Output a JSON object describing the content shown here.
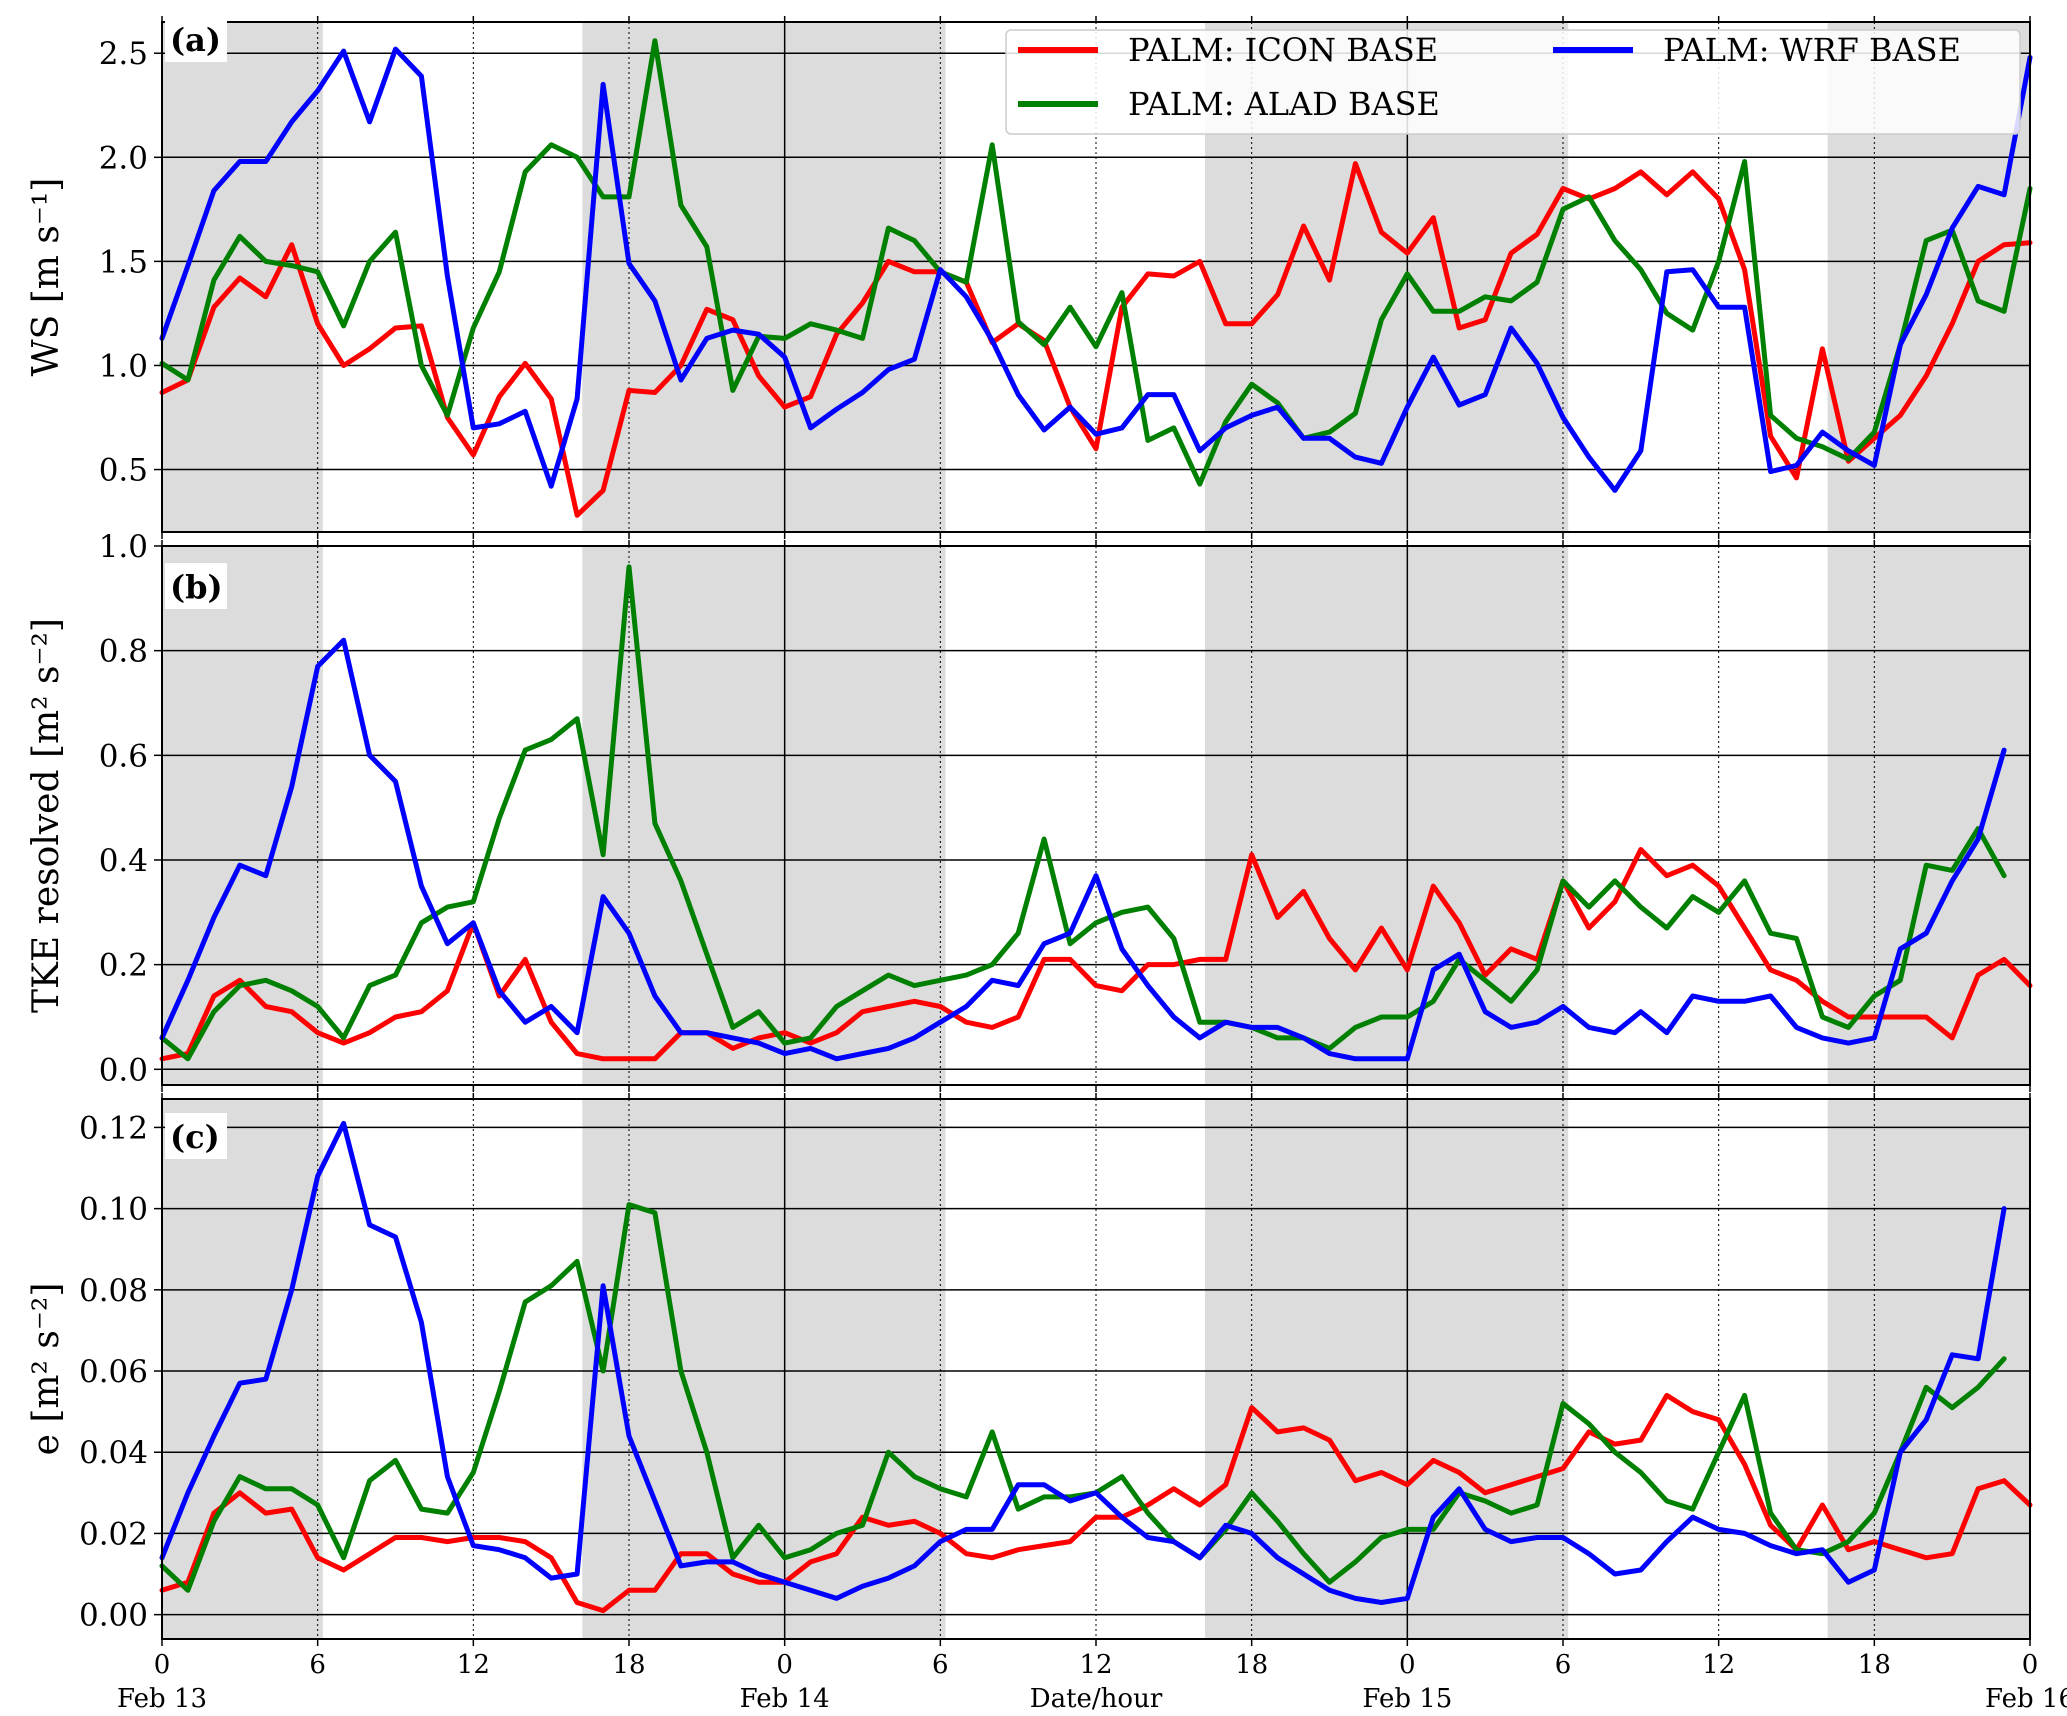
{
  "colors": {
    "icon": "#ff0000",
    "alad": "#008000",
    "wrf": "#0000ff",
    "night": "#dcdcdc"
  },
  "legend": [
    {
      "label": "PALM: ICON BASE",
      "color": "#ff0000"
    },
    {
      "label": "PALM: ALAD BASE",
      "color": "#008000"
    },
    {
      "label": "PALM: WRF BASE",
      "color": "#0000ff"
    }
  ],
  "x_axis": {
    "label": "Date/hour",
    "hour_ticks": [
      "0",
      "6",
      "12",
      "18",
      "0",
      "6",
      "12",
      "18",
      "0",
      "6",
      "12",
      "18",
      "0"
    ],
    "date_labels": [
      "Feb 13",
      "Feb 14",
      "Feb 15",
      "Feb 16"
    ]
  },
  "chart_data": [
    {
      "type": "line",
      "panel": "(a)",
      "ylabel": "WS [m s⁻¹]",
      "ylim": [
        0.2,
        2.65
      ],
      "yticks": [
        "0.5",
        "1.0",
        "1.5",
        "2.0",
        "2.5"
      ],
      "xlim_hours": [
        0,
        72
      ],
      "x_hours_step": 1,
      "x_hours_start": 0,
      "grid": true,
      "legend_position": "top-right",
      "night_shading_hours": [
        [
          0,
          6.2
        ],
        [
          16.2,
          30.2
        ],
        [
          40.2,
          54.2
        ],
        [
          64.2,
          72
        ]
      ],
      "series": [
        {
          "name": "PALM: ICON BASE",
          "color": "#ff0000",
          "values": [
            0.87,
            0.93,
            1.28,
            1.42,
            1.33,
            1.58,
            1.2,
            1.0,
            1.08,
            1.18,
            1.19,
            0.75,
            0.57,
            0.85,
            1.01,
            0.84,
            0.28,
            0.4,
            0.88,
            0.87,
            1.0,
            1.27,
            1.22,
            0.95,
            0.8,
            0.85,
            1.15,
            1.3,
            1.5,
            1.45,
            1.45,
            1.4,
            1.11,
            1.2,
            1.12,
            0.8,
            0.6,
            1.28,
            1.44,
            1.43,
            1.5,
            1.2,
            1.2,
            1.34,
            1.67,
            1.41,
            1.97,
            1.64,
            1.54,
            1.71,
            1.18,
            1.22,
            1.54,
            1.63,
            1.85,
            1.8,
            1.85,
            1.93,
            1.82,
            1.93,
            1.8,
            1.46,
            0.66,
            0.46,
            1.08,
            0.54,
            0.65,
            0.76,
            0.95,
            1.2,
            1.5,
            1.58,
            1.59
          ]
        },
        {
          "name": "PALM: ALAD BASE",
          "color": "#008000",
          "values": [
            1.01,
            0.93,
            1.41,
            1.62,
            1.5,
            1.48,
            1.45,
            1.19,
            1.5,
            1.64,
            1.0,
            0.76,
            1.18,
            1.45,
            1.93,
            2.06,
            2.0,
            1.81,
            1.81,
            2.56,
            1.77,
            1.57,
            0.88,
            1.14,
            1.13,
            1.2,
            1.17,
            1.13,
            1.66,
            1.6,
            1.45,
            1.4,
            2.06,
            1.21,
            1.1,
            1.28,
            1.09,
            1.35,
            0.64,
            0.7,
            0.43,
            0.73,
            0.91,
            0.82,
            0.65,
            0.68,
            0.77,
            1.22,
            1.44,
            1.26,
            1.26,
            1.33,
            1.31,
            1.4,
            1.75,
            1.81,
            1.6,
            1.46,
            1.25,
            1.17,
            1.5,
            1.98,
            0.76,
            0.65,
            0.61,
            0.55,
            0.68,
            1.1,
            1.6,
            1.65,
            1.31,
            1.26,
            1.85
          ]
        },
        {
          "name": "PALM: WRF BASE",
          "color": "#0000ff",
          "values": [
            1.13,
            1.48,
            1.84,
            1.98,
            1.98,
            2.17,
            2.32,
            2.51,
            2.17,
            2.52,
            2.39,
            1.43,
            0.7,
            0.72,
            0.78,
            0.42,
            0.84,
            2.35,
            1.49,
            1.31,
            0.93,
            1.13,
            1.17,
            1.15,
            1.04,
            0.7,
            0.79,
            0.87,
            0.98,
            1.03,
            1.46,
            1.33,
            1.12,
            0.86,
            0.69,
            0.8,
            0.67,
            0.7,
            0.86,
            0.86,
            0.59,
            0.7,
            0.76,
            0.8,
            0.65,
            0.65,
            0.56,
            0.53,
            0.8,
            1.04,
            0.81,
            0.86,
            1.18,
            1.01,
            0.75,
            0.56,
            0.4,
            0.59,
            1.45,
            1.46,
            1.28,
            1.28,
            0.49,
            0.52,
            0.68,
            0.59,
            0.52,
            1.1,
            1.34,
            1.66,
            1.86,
            1.82,
            2.48
          ]
        }
      ]
    },
    {
      "type": "line",
      "panel": "(b)",
      "ylabel": "TKE resolved [m² s⁻²]",
      "ylim": [
        -0.03,
        1.0
      ],
      "yticks": [
        "0.0",
        "0.2",
        "0.4",
        "0.6",
        "0.8",
        "1.0"
      ],
      "xlim_hours": [
        0,
        72
      ],
      "x_hours_step": 1,
      "x_hours_start": 0,
      "grid": true,
      "night_shading_hours": [
        [
          0,
          6.2
        ],
        [
          16.2,
          30.2
        ],
        [
          40.2,
          54.2
        ],
        [
          64.2,
          72
        ]
      ],
      "series": [
        {
          "name": "PALM: ICON BASE",
          "color": "#ff0000",
          "values": [
            0.02,
            0.03,
            0.14,
            0.17,
            0.12,
            0.11,
            0.07,
            0.05,
            0.07,
            0.1,
            0.11,
            0.15,
            0.28,
            0.14,
            0.21,
            0.09,
            0.03,
            0.02,
            0.02,
            0.02,
            0.07,
            0.07,
            0.04,
            0.06,
            0.07,
            0.05,
            0.07,
            0.11,
            0.12,
            0.13,
            0.12,
            0.09,
            0.08,
            0.1,
            0.21,
            0.21,
            0.16,
            0.15,
            0.2,
            0.2,
            0.21,
            0.21,
            0.41,
            0.29,
            0.34,
            0.25,
            0.19,
            0.27,
            0.19,
            0.35,
            0.28,
            0.18,
            0.23,
            0.21,
            0.36,
            0.27,
            0.32,
            0.42,
            0.37,
            0.39,
            0.35,
            0.27,
            0.19,
            0.17,
            0.13,
            0.1,
            0.1,
            0.1,
            0.1,
            0.06,
            0.18,
            0.21,
            0.16
          ]
        },
        {
          "name": "PALM: ALAD BASE",
          "color": "#008000",
          "values": [
            0.06,
            0.02,
            0.11,
            0.16,
            0.17,
            0.15,
            0.12,
            0.06,
            0.16,
            0.18,
            0.28,
            0.31,
            0.32,
            0.48,
            0.61,
            0.63,
            0.67,
            0.41,
            0.96,
            0.47,
            0.36,
            0.22,
            0.08,
            0.11,
            0.05,
            0.06,
            0.12,
            0.15,
            0.18,
            0.16,
            0.17,
            0.18,
            0.2,
            0.26,
            0.44,
            0.24,
            0.28,
            0.3,
            0.31,
            0.25,
            0.09,
            0.09,
            0.08,
            0.06,
            0.06,
            0.04,
            0.08,
            0.1,
            0.1,
            0.13,
            0.21,
            0.17,
            0.13,
            0.19,
            0.36,
            0.31,
            0.36,
            0.31,
            0.27,
            0.33,
            0.3,
            0.36,
            0.26,
            0.25,
            0.1,
            0.08,
            0.14,
            0.17,
            0.39,
            0.38,
            0.46,
            0.37
          ]
        },
        {
          "name": "PALM: WRF BASE",
          "color": "#0000ff",
          "values": [
            0.06,
            0.17,
            0.29,
            0.39,
            0.37,
            0.54,
            0.77,
            0.82,
            0.6,
            0.55,
            0.35,
            0.24,
            0.28,
            0.15,
            0.09,
            0.12,
            0.07,
            0.33,
            0.26,
            0.14,
            0.07,
            0.07,
            0.06,
            0.05,
            0.03,
            0.04,
            0.02,
            0.03,
            0.04,
            0.06,
            0.09,
            0.12,
            0.17,
            0.16,
            0.24,
            0.26,
            0.37,
            0.23,
            0.16,
            0.1,
            0.06,
            0.09,
            0.08,
            0.08,
            0.06,
            0.03,
            0.02,
            0.02,
            0.02,
            0.19,
            0.22,
            0.11,
            0.08,
            0.09,
            0.12,
            0.08,
            0.07,
            0.11,
            0.07,
            0.14,
            0.13,
            0.13,
            0.14,
            0.08,
            0.06,
            0.05,
            0.06,
            0.23,
            0.26,
            0.36,
            0.44,
            0.61
          ]
        }
      ]
    },
    {
      "type": "line",
      "panel": "(c)",
      "ylabel": "e [m² s⁻²]",
      "ylim": [
        -0.006,
        0.127
      ],
      "yticks": [
        "0.00",
        "0.02",
        "0.04",
        "0.06",
        "0.08",
        "0.10",
        "0.12"
      ],
      "xlim_hours": [
        0,
        72
      ],
      "x_hours_step": 1,
      "x_hours_start": 0,
      "grid": true,
      "night_shading_hours": [
        [
          0,
          6.2
        ],
        [
          16.2,
          30.2
        ],
        [
          40.2,
          54.2
        ],
        [
          64.2,
          72
        ]
      ],
      "series": [
        {
          "name": "PALM: ICON BASE",
          "color": "#ff0000",
          "values": [
            0.006,
            0.008,
            0.025,
            0.03,
            0.025,
            0.026,
            0.014,
            0.011,
            0.015,
            0.019,
            0.019,
            0.018,
            0.019,
            0.019,
            0.018,
            0.014,
            0.003,
            0.001,
            0.006,
            0.006,
            0.015,
            0.015,
            0.01,
            0.008,
            0.008,
            0.013,
            0.015,
            0.024,
            0.022,
            0.023,
            0.02,
            0.015,
            0.014,
            0.016,
            0.017,
            0.018,
            0.024,
            0.024,
            0.027,
            0.031,
            0.027,
            0.032,
            0.051,
            0.045,
            0.046,
            0.043,
            0.033,
            0.035,
            0.032,
            0.038,
            0.035,
            0.03,
            0.032,
            0.034,
            0.036,
            0.045,
            0.042,
            0.043,
            0.054,
            0.05,
            0.048,
            0.037,
            0.022,
            0.016,
            0.027,
            0.016,
            0.018,
            0.016,
            0.014,
            0.015,
            0.031,
            0.033,
            0.027
          ]
        },
        {
          "name": "PALM: ALAD BASE",
          "color": "#008000",
          "values": [
            0.012,
            0.006,
            0.023,
            0.034,
            0.031,
            0.031,
            0.027,
            0.014,
            0.033,
            0.038,
            0.026,
            0.025,
            0.035,
            0.055,
            0.077,
            0.081,
            0.087,
            0.06,
            0.101,
            0.099,
            0.06,
            0.04,
            0.014,
            0.022,
            0.014,
            0.016,
            0.02,
            0.022,
            0.04,
            0.034,
            0.031,
            0.029,
            0.045,
            0.026,
            0.029,
            0.029,
            0.03,
            0.034,
            0.025,
            0.018,
            0.014,
            0.021,
            0.03,
            0.023,
            0.015,
            0.008,
            0.013,
            0.019,
            0.021,
            0.021,
            0.03,
            0.028,
            0.025,
            0.027,
            0.052,
            0.047,
            0.04,
            0.035,
            0.028,
            0.026,
            0.04,
            0.054,
            0.025,
            0.016,
            0.015,
            0.018,
            0.025,
            0.04,
            0.056,
            0.051,
            0.056,
            0.063
          ]
        },
        {
          "name": "PALM: WRF BASE",
          "color": "#0000ff",
          "values": [
            0.014,
            0.03,
            0.044,
            0.057,
            0.058,
            0.08,
            0.108,
            0.121,
            0.096,
            0.093,
            0.072,
            0.034,
            0.017,
            0.016,
            0.014,
            0.009,
            0.01,
            0.081,
            0.044,
            0.028,
            0.012,
            0.013,
            0.013,
            0.01,
            0.008,
            0.006,
            0.004,
            0.007,
            0.009,
            0.012,
            0.018,
            0.021,
            0.021,
            0.032,
            0.032,
            0.028,
            0.03,
            0.024,
            0.019,
            0.018,
            0.014,
            0.022,
            0.02,
            0.014,
            0.01,
            0.006,
            0.004,
            0.003,
            0.004,
            0.024,
            0.031,
            0.021,
            0.018,
            0.019,
            0.019,
            0.015,
            0.01,
            0.011,
            0.018,
            0.024,
            0.021,
            0.02,
            0.017,
            0.015,
            0.016,
            0.008,
            0.011,
            0.04,
            0.048,
            0.064,
            0.063,
            0.1
          ]
        }
      ]
    }
  ]
}
